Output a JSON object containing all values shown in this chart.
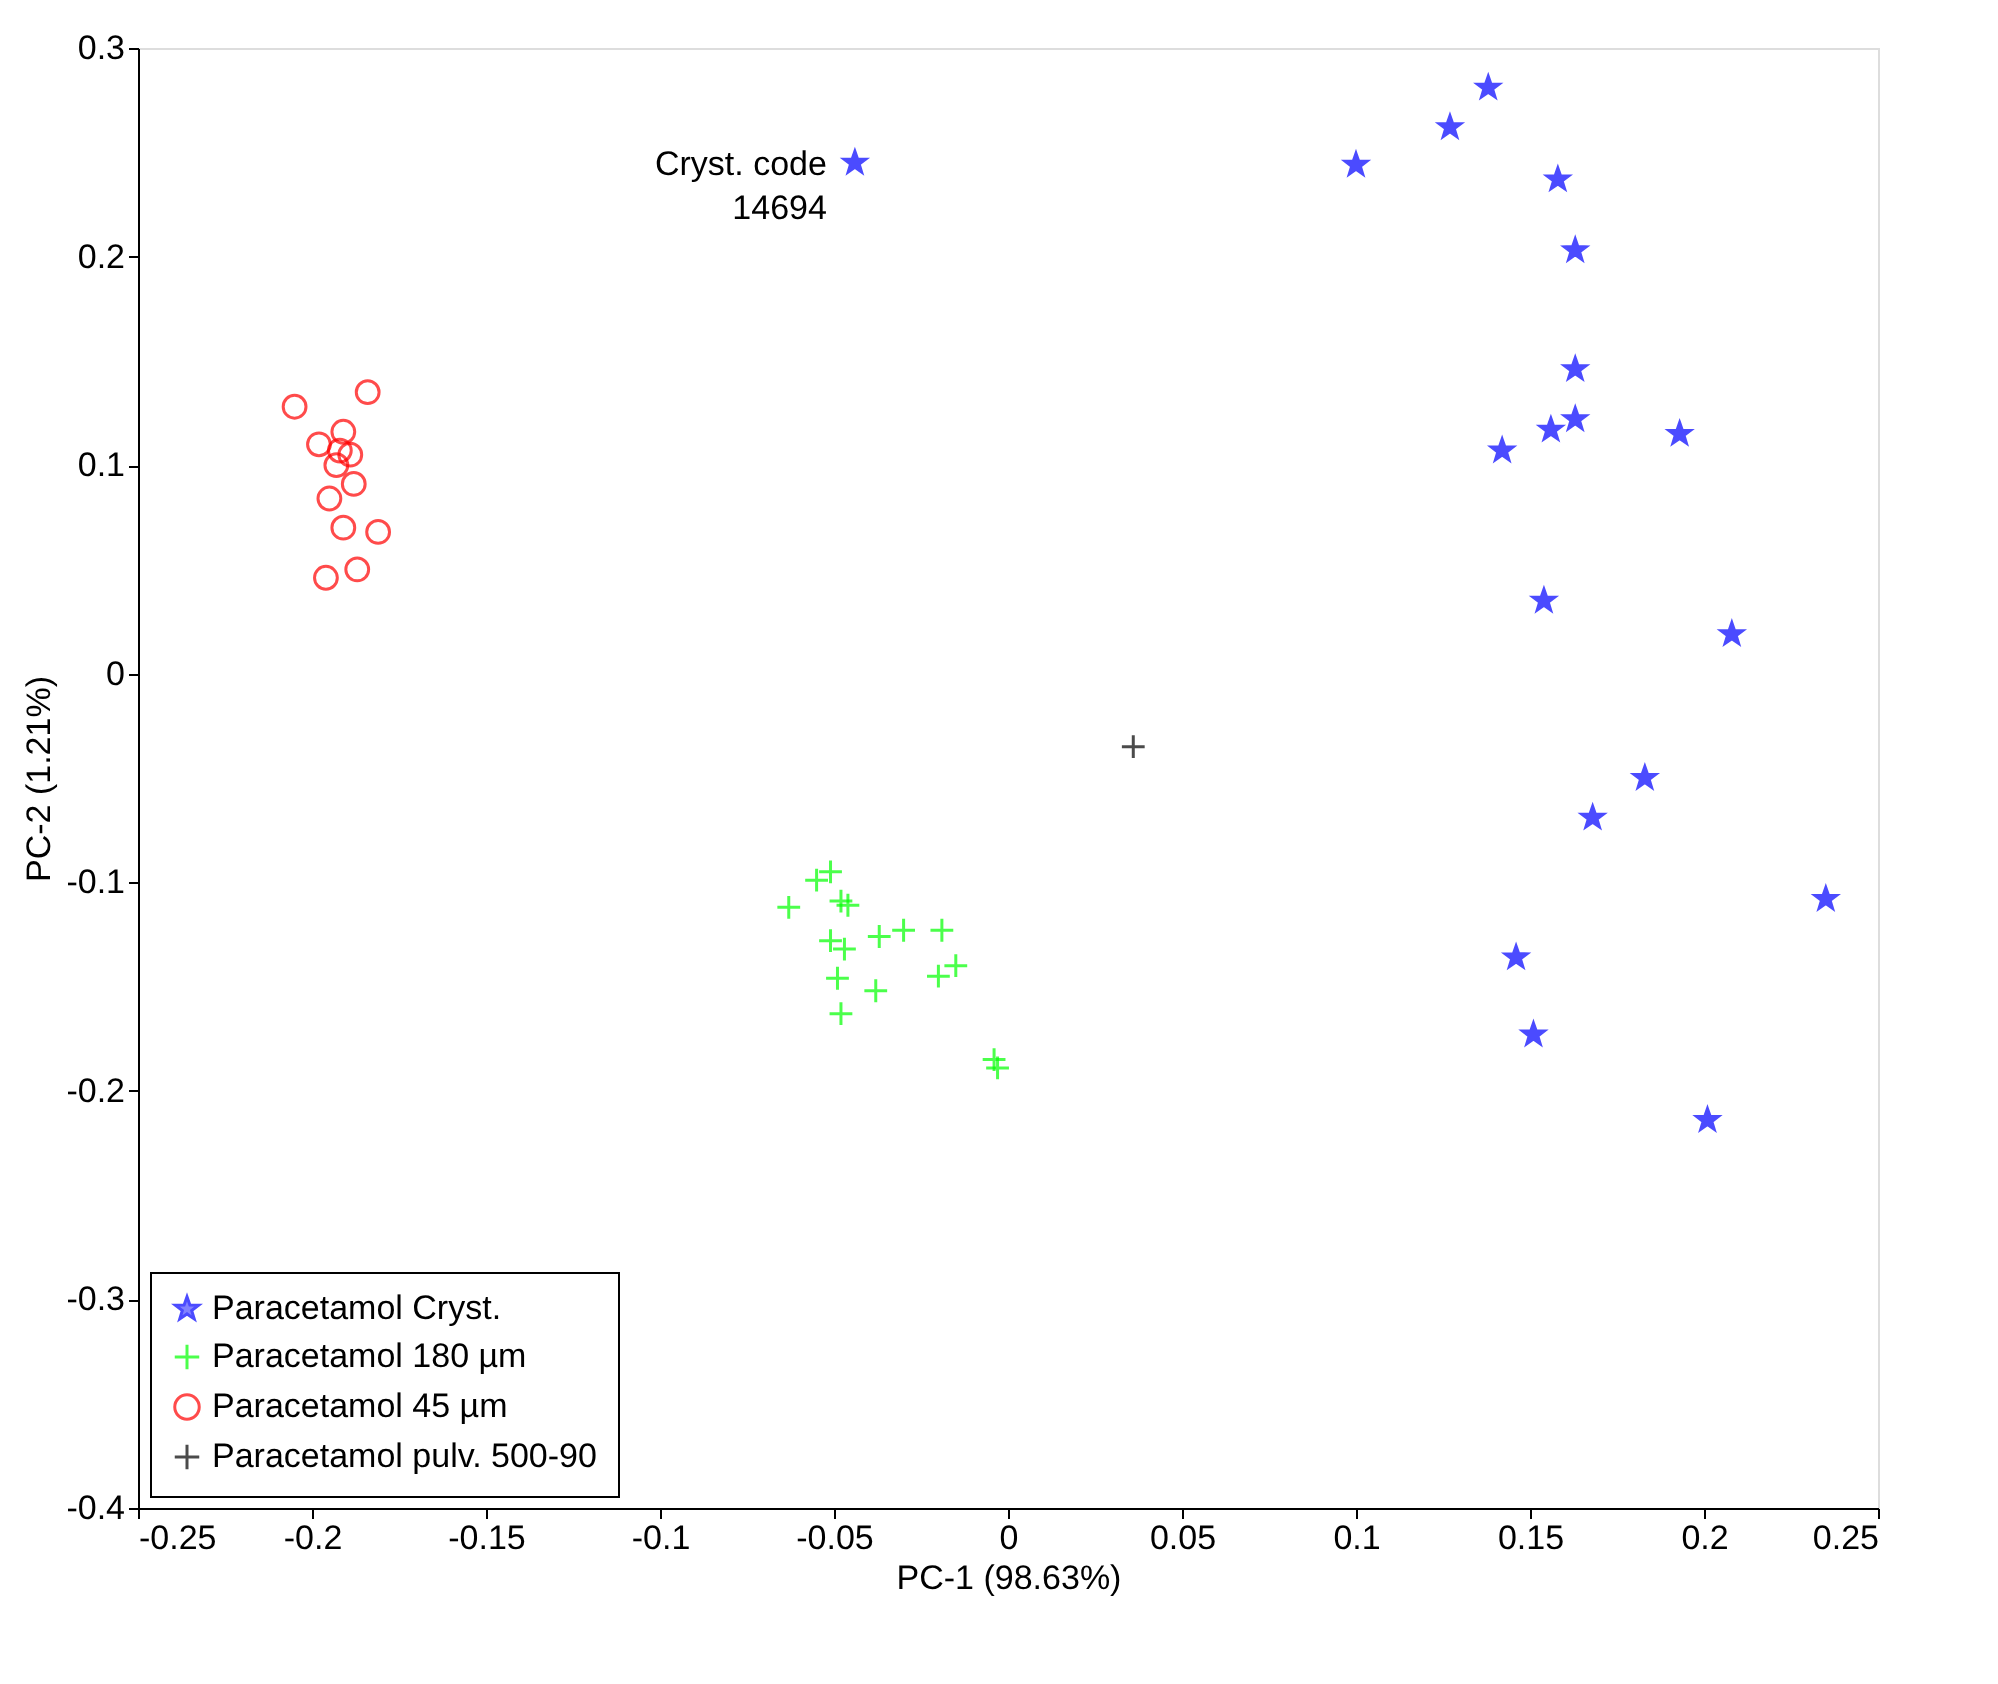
{
  "chart_data": {
    "type": "scatter",
    "xlabel": "PC-1 (98.63%)",
    "ylabel": "PC-2 (1.21%)",
    "xlim": [
      -0.25,
      0.25
    ],
    "xticks": [
      -0.25,
      -0.2,
      -0.15,
      -0.1,
      -0.05,
      0,
      0.05,
      0.1,
      0.15,
      0.2,
      0.25
    ],
    "ylim": [
      -0.4,
      0.3
    ],
    "yticks": [
      -0.4,
      -0.3,
      -0.2,
      -0.1,
      0,
      0.1,
      0.2,
      0.3
    ],
    "grid": false,
    "legend": "bottom left",
    "annotations": [
      {
        "text": "Cryst. code\n14694",
        "x": -0.044,
        "y": 0.245
      }
    ],
    "series": [
      {
        "name": "Paracetamol Cryst.",
        "color": "#0000ff",
        "marker": "star",
        "x": [
          -0.044,
          0.138,
          0.127,
          0.1,
          0.158,
          0.163,
          0.163,
          0.163,
          0.156,
          0.142,
          0.193,
          0.154,
          0.208,
          0.183,
          0.168,
          0.235,
          0.146,
          0.151,
          0.201
        ],
        "values": [
          0.245,
          0.281,
          0.262,
          0.244,
          0.237,
          0.203,
          0.146,
          0.122,
          0.117,
          0.107,
          0.115,
          0.035,
          0.019,
          -0.05,
          -0.069,
          -0.108,
          -0.136,
          -0.173,
          -0.214
        ]
      },
      {
        "name": "Paracetamol 180 µm",
        "color": "#00ff00",
        "marker": "cross",
        "x": [
          -0.051,
          -0.055,
          -0.048,
          -0.046,
          -0.063,
          -0.051,
          -0.047,
          -0.037,
          -0.03,
          -0.019,
          -0.015,
          -0.02,
          -0.049,
          -0.038,
          -0.048,
          -0.004,
          -0.003
        ],
        "values": [
          -0.095,
          -0.099,
          -0.109,
          -0.111,
          -0.112,
          -0.128,
          -0.132,
          -0.126,
          -0.123,
          -0.123,
          -0.14,
          -0.145,
          -0.146,
          -0.152,
          -0.163,
          -0.185,
          -0.189
        ]
      },
      {
        "name": "Paracetamol 45 µm",
        "color": "#ff0000",
        "marker": "circle",
        "x": [
          -0.205,
          -0.184,
          -0.198,
          -0.191,
          -0.192,
          -0.189,
          -0.193,
          -0.188,
          -0.195,
          -0.191,
          -0.181,
          -0.196,
          -0.187
        ],
        "values": [
          0.128,
          0.135,
          0.11,
          0.116,
          0.107,
          0.105,
          0.1,
          0.091,
          0.084,
          0.07,
          0.068,
          0.046,
          0.05
        ]
      },
      {
        "name": "Paracetamol pulv. 500-90",
        "color": "#000000",
        "marker": "cross",
        "x": [
          0.036
        ],
        "values": [
          -0.035
        ]
      }
    ]
  }
}
